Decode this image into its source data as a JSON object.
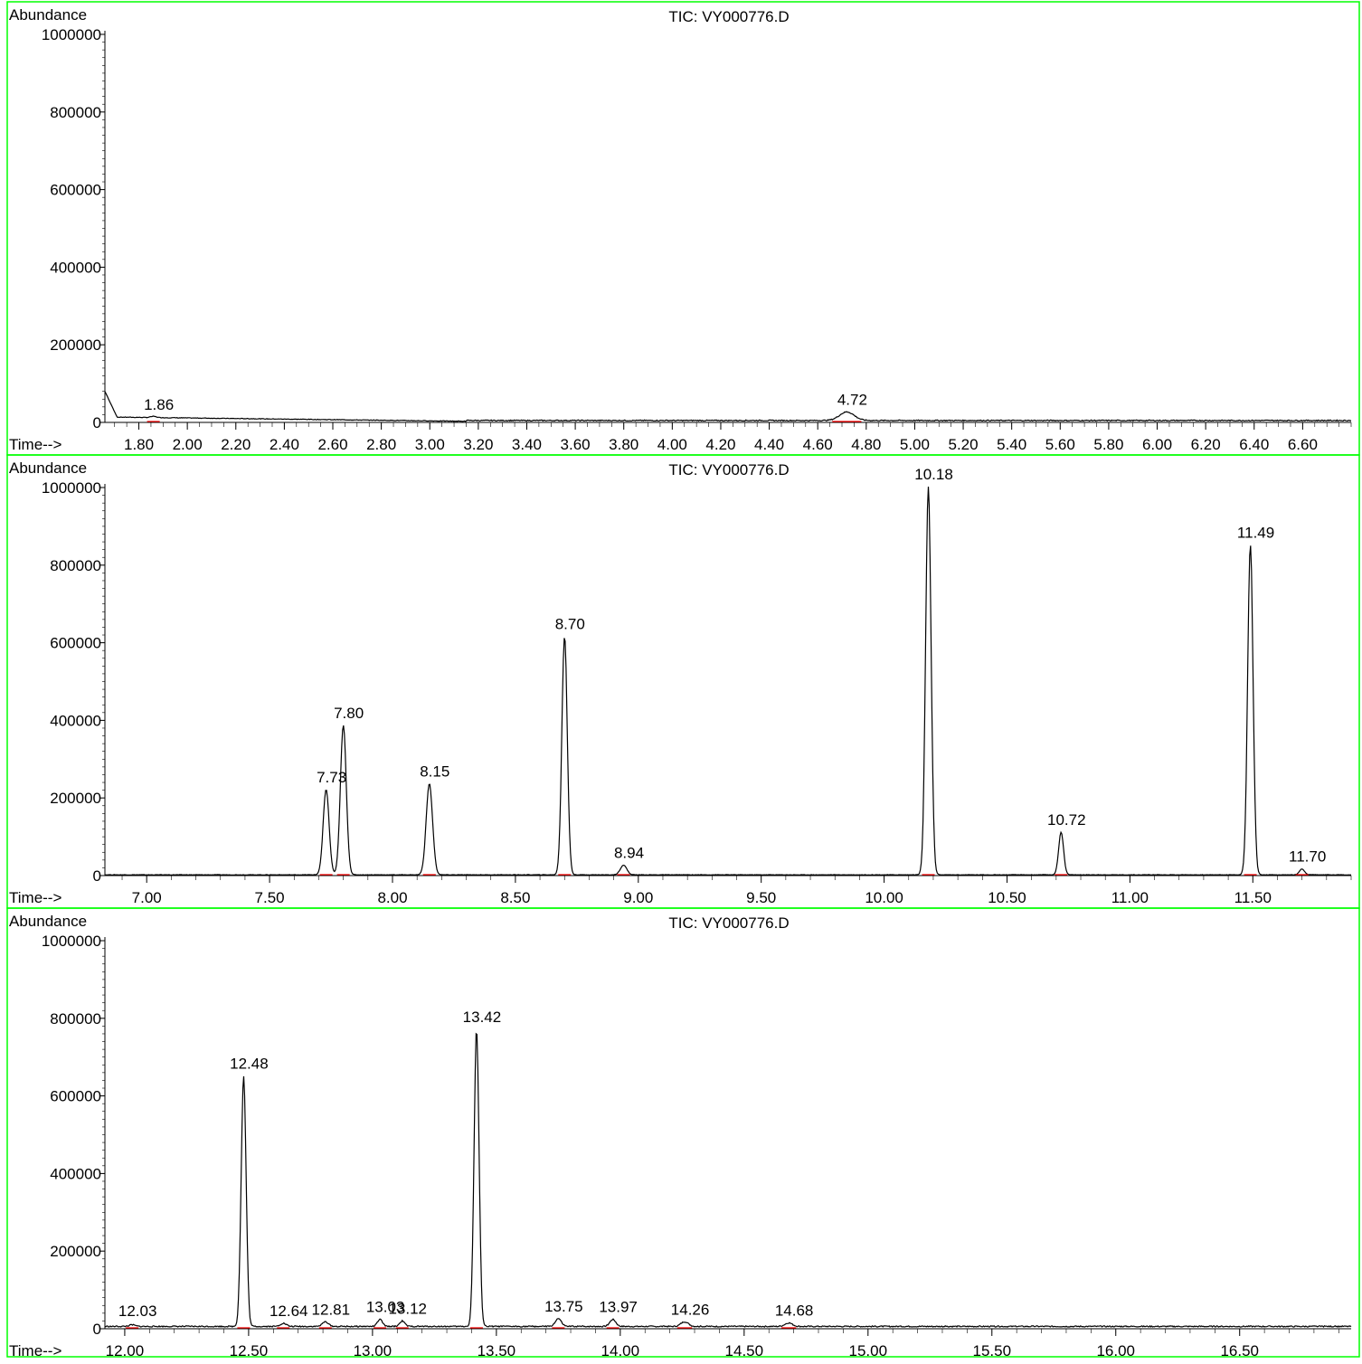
{
  "colors": {
    "frame": "#00ff00",
    "trace": "#000000",
    "baseline": "#ff0000",
    "background": "#ffffff"
  },
  "chart_data": [
    {
      "type": "line",
      "title": "TIC: VY000776.D",
      "ylabel": "Abundance",
      "xlabel": "Time-->",
      "xlim": [
        1.66,
        6.8
      ],
      "ylim": [
        0,
        1000000
      ],
      "x_major_ticks": [
        "1.80",
        "2.00",
        "2.20",
        "2.40",
        "2.60",
        "2.80",
        "3.00",
        "3.20",
        "3.40",
        "3.60",
        "3.80",
        "4.00",
        "4.20",
        "4.40",
        "4.60",
        "4.80",
        "5.00",
        "5.20",
        "5.40",
        "5.60",
        "5.80",
        "6.00",
        "6.20",
        "6.40",
        "6.60"
      ],
      "x_major_values": [
        1.8,
        2.0,
        2.2,
        2.4,
        2.6,
        2.8,
        3.0,
        3.2,
        3.4,
        3.6,
        3.8,
        4.0,
        4.2,
        4.4,
        4.6,
        4.8,
        5.0,
        5.2,
        5.4,
        5.6,
        5.8,
        6.0,
        6.2,
        6.4,
        6.6
      ],
      "x_minor_step": 0.05,
      "y_ticks": [
        "0",
        "200000",
        "400000",
        "600000",
        "800000",
        "1000000"
      ],
      "y_tick_values": [
        0,
        200000,
        400000,
        600000,
        800000,
        1000000
      ],
      "baseline_level": 5000,
      "start_curve": {
        "from": 1.66,
        "to": 3.15,
        "start": 80000,
        "level": 14000,
        "end": 3000
      },
      "peaks": [
        {
          "rt": 1.86,
          "label": "1.86",
          "height": 3000,
          "width": 0.012
        },
        {
          "rt": 4.72,
          "label": "4.72",
          "height": 22000,
          "width": 0.03
        }
      ]
    },
    {
      "type": "line",
      "title": "TIC: VY000776.D",
      "ylabel": "Abundance",
      "xlabel": "Time-->",
      "xlim": [
        6.83,
        11.9
      ],
      "ylim": [
        0,
        1000000
      ],
      "x_major_ticks": [
        "7.00",
        "7.50",
        "8.00",
        "8.50",
        "9.00",
        "9.50",
        "10.00",
        "10.50",
        "11.00",
        "11.50"
      ],
      "x_major_values": [
        7.0,
        7.5,
        8.0,
        8.5,
        9.0,
        9.5,
        10.0,
        10.5,
        11.0,
        11.5
      ],
      "x_minor_step": 0.1,
      "y_ticks": [
        "0",
        "200000",
        "400000",
        "600000",
        "800000",
        "1000000"
      ],
      "y_tick_values": [
        0,
        200000,
        400000,
        600000,
        800000,
        1000000
      ],
      "baseline_level": 2000,
      "peaks": [
        {
          "rt": 7.73,
          "label": "7.73",
          "height": 220000,
          "width": 0.012
        },
        {
          "rt": 7.8,
          "label": "7.80",
          "height": 385000,
          "width": 0.012
        },
        {
          "rt": 8.15,
          "label": "8.15",
          "height": 235000,
          "width": 0.013
        },
        {
          "rt": 8.7,
          "label": "8.70",
          "height": 615000,
          "width": 0.011
        },
        {
          "rt": 8.94,
          "label": "8.94",
          "height": 25000,
          "width": 0.013
        },
        {
          "rt": 10.18,
          "label": "10.18",
          "height": 1000000,
          "width": 0.011
        },
        {
          "rt": 10.72,
          "label": "10.72",
          "height": 110000,
          "width": 0.01
        },
        {
          "rt": 11.49,
          "label": "11.49",
          "height": 850000,
          "width": 0.011
        },
        {
          "rt": 11.7,
          "label": "11.70",
          "height": 15000,
          "width": 0.01
        }
      ]
    },
    {
      "type": "line",
      "title": "TIC: VY000776.D",
      "ylabel": "Abundance",
      "xlabel": "Time-->",
      "xlim": [
        11.92,
        16.95
      ],
      "ylim": [
        0,
        1000000
      ],
      "x_major_ticks": [
        "12.00",
        "12.50",
        "13.00",
        "13.50",
        "14.00",
        "14.50",
        "15.00",
        "15.50",
        "16.00",
        "16.50"
      ],
      "x_major_values": [
        12.0,
        12.5,
        13.0,
        13.5,
        14.0,
        14.5,
        15.0,
        15.5,
        16.0,
        16.5
      ],
      "x_minor_step": 0.1,
      "y_ticks": [
        "0",
        "200000",
        "400000",
        "600000",
        "800000",
        "1000000"
      ],
      "y_tick_values": [
        0,
        200000,
        400000,
        600000,
        800000,
        1000000
      ],
      "baseline_level": 6000,
      "peaks": [
        {
          "rt": 12.03,
          "label": "12.03",
          "height": 4000,
          "width": 0.012
        },
        {
          "rt": 12.48,
          "label": "12.48",
          "height": 645000,
          "width": 0.01
        },
        {
          "rt": 12.64,
          "label": "12.64",
          "height": 8000,
          "width": 0.012
        },
        {
          "rt": 12.81,
          "label": "12.81",
          "height": 12000,
          "width": 0.012
        },
        {
          "rt": 13.03,
          "label": "13.03",
          "height": 18000,
          "width": 0.01
        },
        {
          "rt": 13.12,
          "label": "13.12",
          "height": 14000,
          "width": 0.01
        },
        {
          "rt": 13.42,
          "label": "13.42",
          "height": 765000,
          "width": 0.01
        },
        {
          "rt": 13.75,
          "label": "13.75",
          "height": 20000,
          "width": 0.012
        },
        {
          "rt": 13.97,
          "label": "13.97",
          "height": 18000,
          "width": 0.012
        },
        {
          "rt": 14.26,
          "label": "14.26",
          "height": 12000,
          "width": 0.015
        },
        {
          "rt": 14.68,
          "label": "14.68",
          "height": 9000,
          "width": 0.015
        }
      ]
    }
  ]
}
